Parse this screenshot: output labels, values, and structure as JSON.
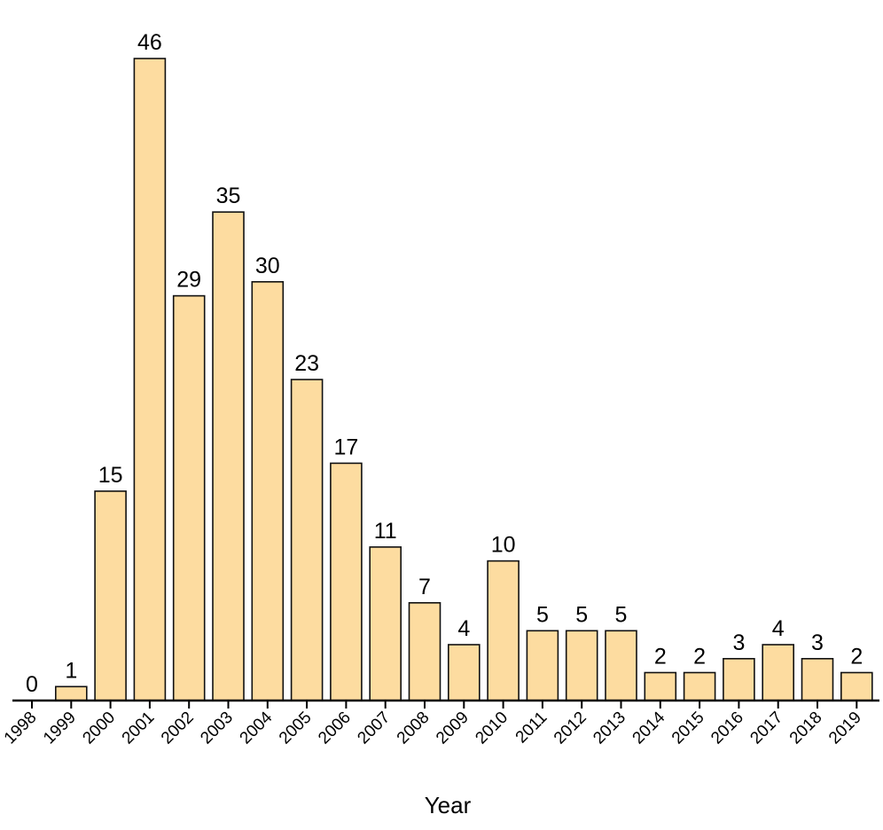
{
  "chart_data": {
    "type": "bar",
    "categories": [
      "1998",
      "1999",
      "2000",
      "2001",
      "2002",
      "2003",
      "2004",
      "2005",
      "2006",
      "2007",
      "2008",
      "2009",
      "2010",
      "2011",
      "2012",
      "2013",
      "2014",
      "2015",
      "2016",
      "2017",
      "2018",
      "2019"
    ],
    "values": [
      0,
      1,
      15,
      46,
      29,
      35,
      30,
      23,
      17,
      11,
      7,
      4,
      10,
      5,
      5,
      5,
      2,
      2,
      3,
      4,
      3,
      2
    ],
    "title": "",
    "xlabel": "Year",
    "ylabel": "",
    "ylim": [
      0,
      46
    ],
    "grid": false,
    "bar_color": "#fddca0",
    "edge_color": "#111111"
  }
}
